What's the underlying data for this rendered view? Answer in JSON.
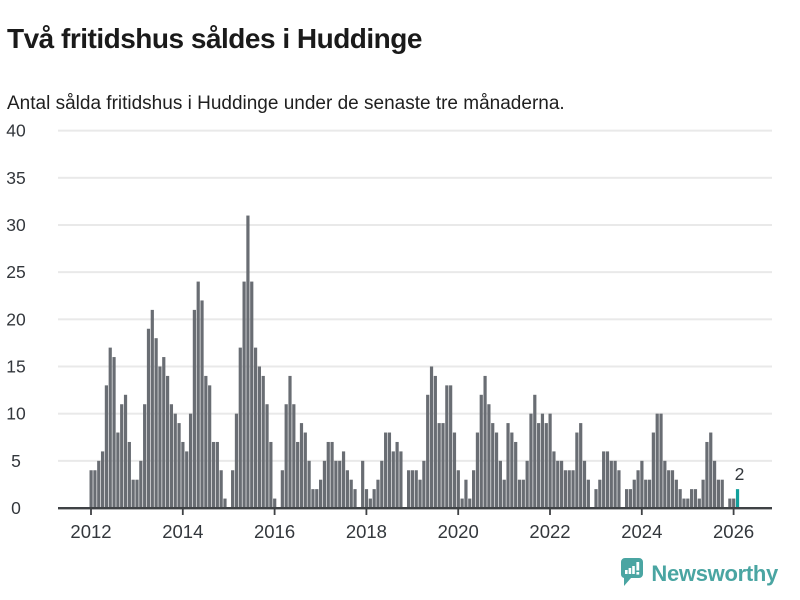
{
  "header": {
    "title": "Två fritidshus såldes i Huddinge",
    "subtitle": "Antal sålda fritidshus i Huddinge under de senaste tre månaderna."
  },
  "chart_data": {
    "type": "bar",
    "title": "Två fritidshus såldes i Huddinge",
    "subtitle": "Antal sålda fritidshus i Huddinge under de senaste tre månaderna.",
    "frequency": "monthly",
    "x_start": "2012-01",
    "x_end": "2026-02",
    "ylim": [
      0,
      40
    ],
    "y_ticks": [
      0,
      5,
      10,
      15,
      20,
      25,
      30,
      35,
      40
    ],
    "x_tick_labels": [
      "2012",
      "2014",
      "2016",
      "2018",
      "2020",
      "2022",
      "2024",
      "2026"
    ],
    "grid": "horizontal",
    "legend": "none",
    "bar_color": "#696d73",
    "highlight_color": "#12a09c",
    "axis_color": "#3f4245",
    "gridline_color": "#e9e9e9",
    "label_color": "#33373c",
    "annotation": {
      "text": "2",
      "applies_to": "last-bar"
    },
    "highlight_last_n": 1,
    "series": [
      {
        "year": 2012,
        "values": [
          4,
          4,
          5,
          6,
          13,
          17,
          16,
          8,
          11,
          12,
          7,
          3
        ]
      },
      {
        "year": 2013,
        "values": [
          3,
          5,
          11,
          19,
          21,
          18,
          15,
          16,
          14,
          11,
          10,
          9
        ]
      },
      {
        "year": 2014,
        "values": [
          7,
          6,
          10,
          21,
          24,
          22,
          14,
          13,
          7,
          7,
          4,
          1
        ]
      },
      {
        "year": 2015,
        "values": [
          0,
          4,
          10,
          17,
          24,
          31,
          24,
          17,
          15,
          14,
          11,
          7
        ]
      },
      {
        "year": 2016,
        "values": [
          1,
          0,
          4,
          11,
          14,
          11,
          7,
          9,
          8,
          5,
          2,
          2
        ]
      },
      {
        "year": 2017,
        "values": [
          3,
          5,
          7,
          7,
          5,
          5,
          6,
          4,
          3,
          2,
          0,
          5
        ]
      },
      {
        "year": 2018,
        "values": [
          2,
          1,
          2,
          3,
          5,
          8,
          8,
          6,
          7,
          6,
          0,
          4
        ]
      },
      {
        "year": 2019,
        "values": [
          4,
          4,
          3,
          5,
          12,
          15,
          14,
          9,
          9,
          13,
          13,
          8
        ]
      },
      {
        "year": 2020,
        "values": [
          4,
          1,
          3,
          1,
          4,
          8,
          12,
          14,
          11,
          9,
          8,
          5
        ]
      },
      {
        "year": 2021,
        "values": [
          3,
          9,
          8,
          7,
          3,
          3,
          5,
          10,
          12,
          9,
          10,
          9
        ]
      },
      {
        "year": 2022,
        "values": [
          10,
          6,
          5,
          5,
          4,
          4,
          4,
          8,
          9,
          5,
          3,
          0
        ]
      },
      {
        "year": 2023,
        "values": [
          2,
          3,
          6,
          6,
          5,
          5,
          4,
          0,
          2,
          2,
          3,
          4
        ]
      },
      {
        "year": 2024,
        "values": [
          5,
          3,
          3,
          8,
          10,
          10,
          5,
          4,
          4,
          3,
          2,
          1
        ]
      },
      {
        "year": 2025,
        "values": [
          1,
          2,
          2,
          1,
          3,
          7,
          8,
          5,
          3,
          3,
          0,
          1
        ]
      },
      {
        "year": 2026,
        "values": [
          1,
          2
        ]
      }
    ]
  },
  "footer": {
    "brand": "Newsworthy",
    "brand_color": "#4aa5a2",
    "logo_icon": "bar-chart-speech-bubble"
  }
}
